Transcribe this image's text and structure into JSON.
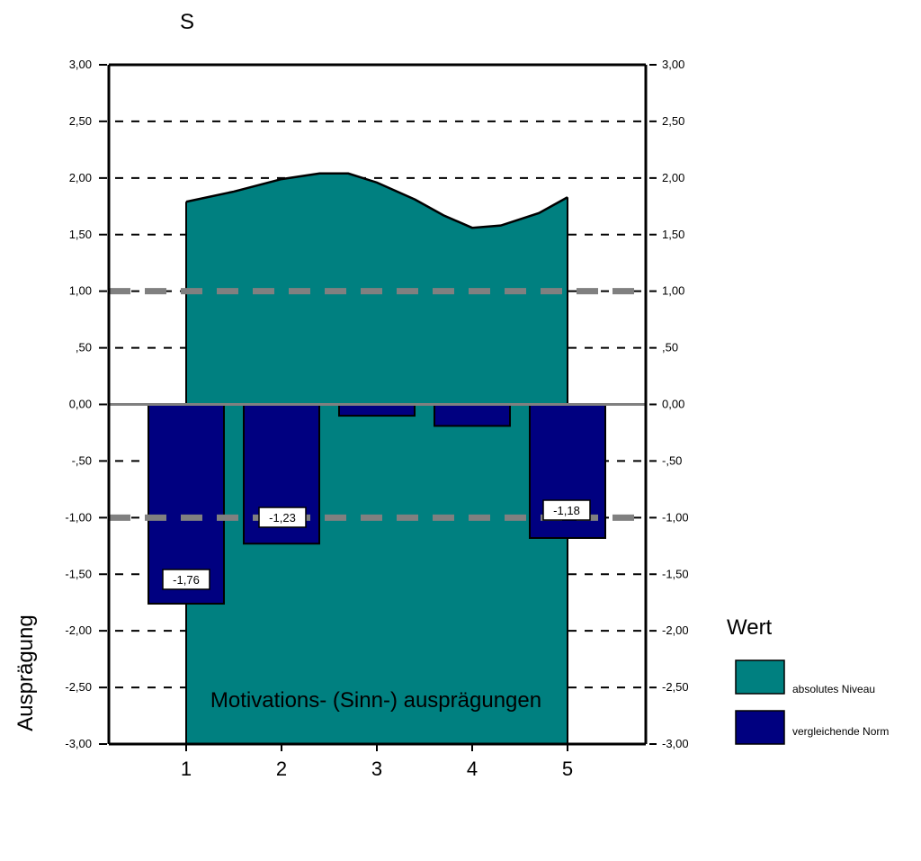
{
  "chart_data": {
    "type": "bar",
    "title": "S",
    "xlabel": "Motivations- (Sinn-) ausprägungen",
    "ylabel": "Ausprägung",
    "categories": [
      "1",
      "2",
      "3",
      "4",
      "5"
    ],
    "ylim": [
      -3,
      3
    ],
    "y_ticks": [
      3,
      2.5,
      2,
      1.5,
      1,
      0.5,
      0,
      -0.5,
      -1,
      -1.5,
      -2,
      -2.5,
      -3
    ],
    "y_tick_labels": [
      "3,00",
      "2,50",
      "2,00",
      "1,50",
      "1,00",
      ",50",
      "0,00",
      "-,50",
      "-1,00",
      "-1,50",
      "-2,00",
      "-2,50",
      "-3,00"
    ],
    "grid": "dashed horizontal at every tick; thick grey dashed reference lines at 1,00 and -1,00",
    "series": [
      {
        "name": "absolutes Niveau",
        "type": "area",
        "color": "#008080",
        "x": [
          1,
          1.5,
          2,
          2.4,
          2.7,
          3,
          3.4,
          3.7,
          4,
          4.3,
          4.7,
          5
        ],
        "values": [
          1.79,
          1.88,
          1.99,
          2.04,
          2.04,
          1.96,
          1.81,
          1.67,
          1.56,
          1.58,
          1.69,
          1.83
        ]
      },
      {
        "name": "vergleichende Norm",
        "type": "bar",
        "color": "#000080",
        "values": [
          -1.76,
          -1.23,
          -0.1,
          -0.19,
          -1.18
        ],
        "data_labels": [
          "-1,76",
          "-1,23",
          "",
          "",
          "-1,18"
        ]
      }
    ],
    "legend": {
      "title": "Wert",
      "position": "right",
      "items": [
        "absolutes Niveau",
        "vergleichende Norm"
      ]
    }
  }
}
